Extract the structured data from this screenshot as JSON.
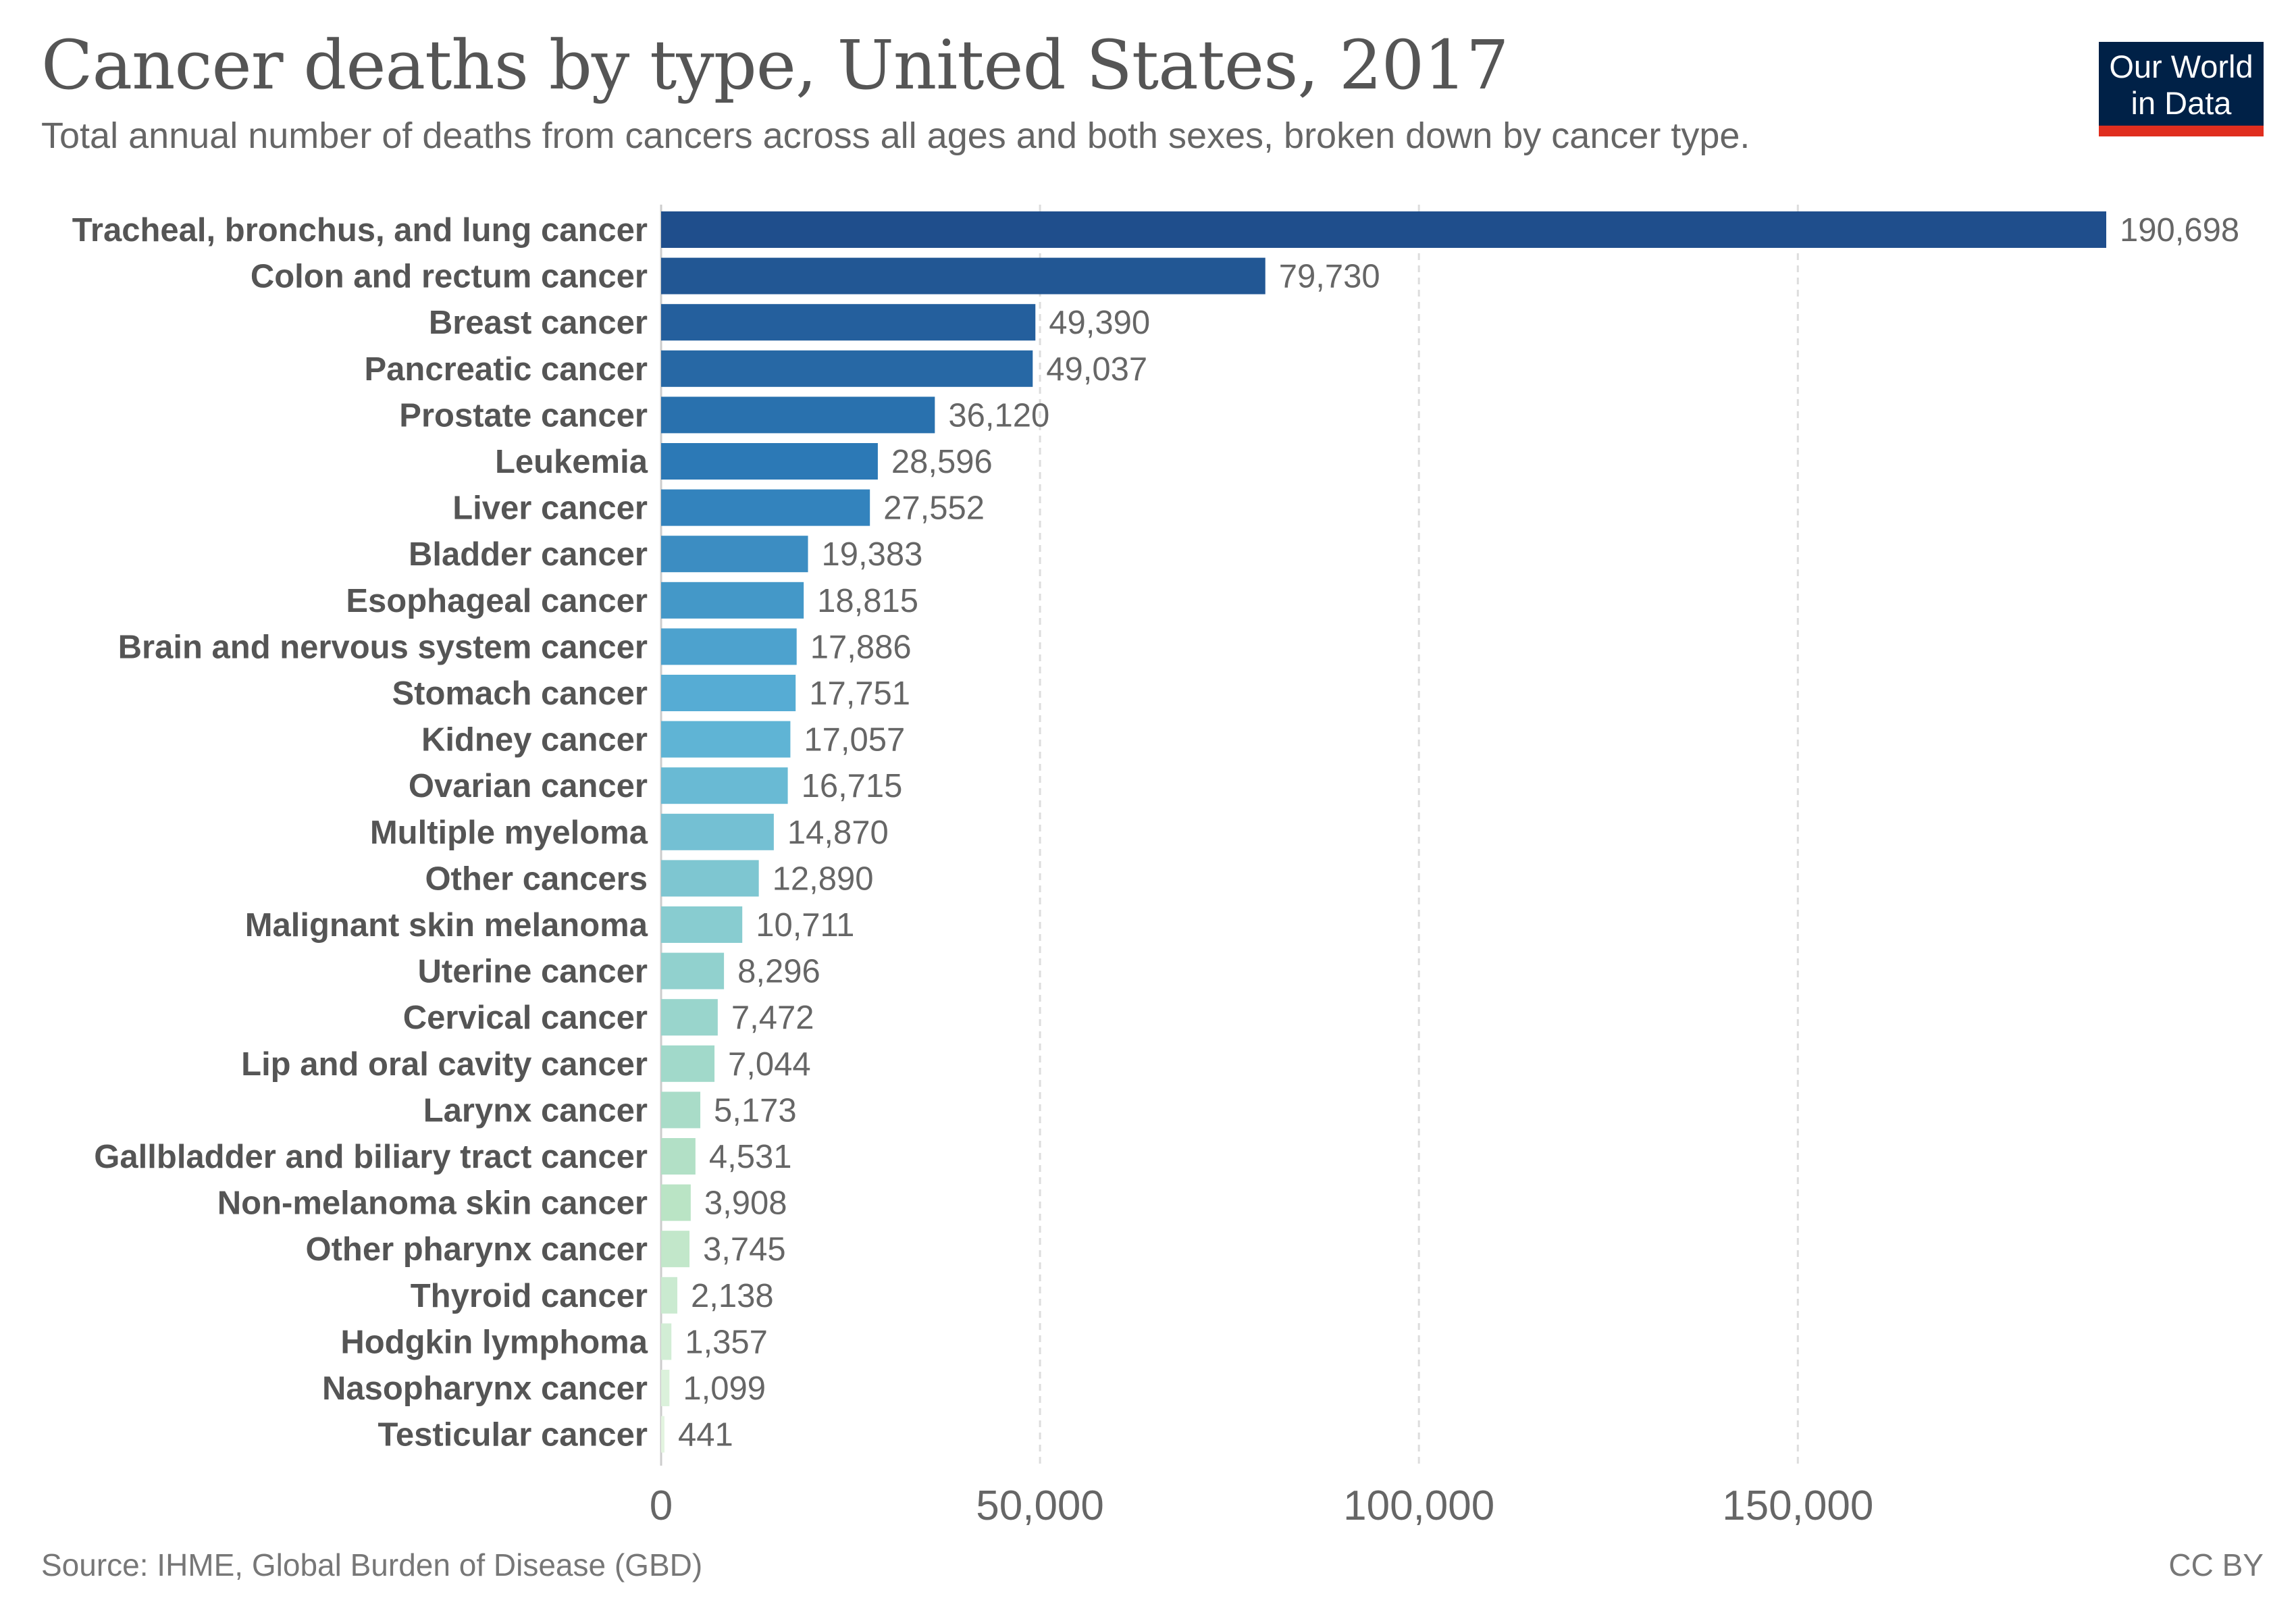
{
  "header": {
    "title": "Cancer deaths by type, United States, 2017",
    "subtitle": "Total annual number of deaths from cancers across all ages and both sexes, broken down by cancer type."
  },
  "logo": {
    "line1": "Our World",
    "line2": "in Data"
  },
  "footer": {
    "source": "Source: IHME, Global Burden of Disease (GBD)",
    "license": "CC BY"
  },
  "colors": {
    "logo_bg": "#002147",
    "logo_accent": "#e02e1f",
    "bar_dark": "#1f4e8c",
    "bar_light": "#e3f4e0"
  },
  "chart_data": {
    "type": "bar",
    "orientation": "horizontal",
    "categories": [
      "Tracheal, bronchus, and lung cancer",
      "Colon and rectum cancer",
      "Breast cancer",
      "Pancreatic cancer",
      "Prostate cancer",
      "Leukemia",
      "Liver cancer",
      "Bladder cancer",
      "Esophageal cancer",
      "Brain and nervous system cancer",
      "Stomach cancer",
      "Kidney cancer",
      "Ovarian cancer",
      "Multiple myeloma",
      "Other cancers",
      "Malignant skin melanoma",
      "Uterine cancer",
      "Cervical cancer",
      "Lip and oral cavity cancer",
      "Larynx cancer",
      "Gallbladder and biliary tract cancer",
      "Non-melanoma skin cancer",
      "Other pharynx cancer",
      "Thyroid cancer",
      "Hodgkin lymphoma",
      "Nasopharynx cancer",
      "Testicular cancer"
    ],
    "values": [
      190698,
      79730,
      49390,
      49037,
      36120,
      28596,
      27552,
      19383,
      18815,
      17886,
      17751,
      17057,
      16715,
      14870,
      12890,
      10711,
      8296,
      7472,
      7044,
      5173,
      4531,
      3908,
      3745,
      2138,
      1357,
      1099,
      441
    ],
    "value_labels": [
      "190,698",
      "79,730",
      "49,390",
      "49,037",
      "36,120",
      "28,596",
      "27,552",
      "19,383",
      "18,815",
      "17,886",
      "17,751",
      "17,057",
      "16,715",
      "14,870",
      "12,890",
      "10,711",
      "8,296",
      "7,472",
      "7,044",
      "5,173",
      "4,531",
      "3,908",
      "3,745",
      "2,138",
      "1,357",
      "1,099",
      "441"
    ],
    "xticks": [
      0,
      50000,
      100000,
      150000
    ],
    "xtick_labels": [
      "0",
      "50,000",
      "100,000",
      "150,000"
    ],
    "xlim": [
      0,
      190698
    ],
    "grid": "vertical dashed",
    "title": "Cancer deaths by type, United States, 2017"
  }
}
